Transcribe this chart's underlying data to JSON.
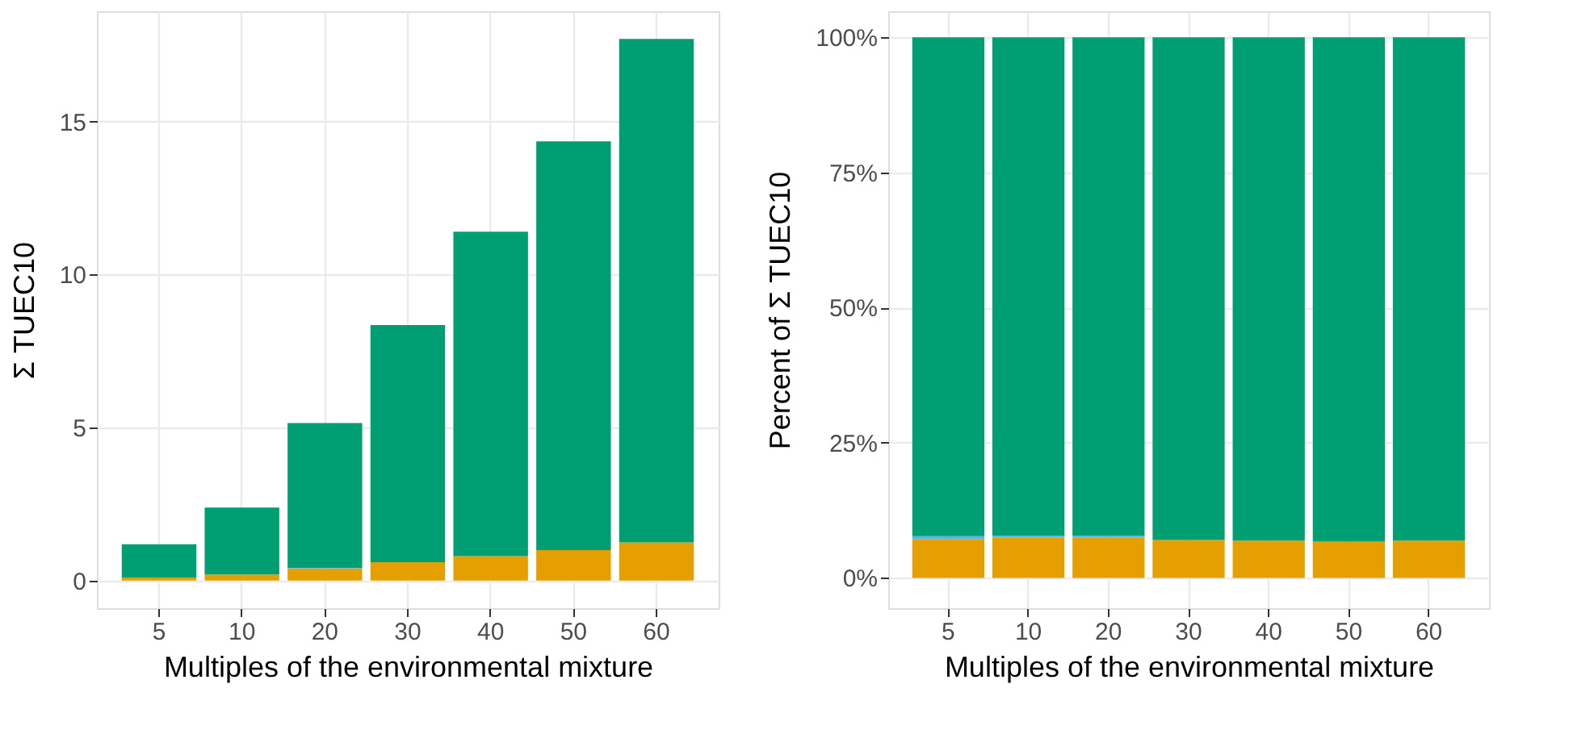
{
  "chart_data": [
    {
      "type": "bar",
      "stacked": true,
      "xlabel": "Multiples of the environmental mixture",
      "ylabel": "Σ TUEC10",
      "categories": [
        "5",
        "10",
        "20",
        "30",
        "40",
        "50",
        "60"
      ],
      "series": [
        {
          "color": "#e69f00",
          "values": [
            0.1,
            0.2,
            0.4,
            0.6,
            0.8,
            1.0,
            1.25
          ]
        },
        {
          "color": "#56b4e9",
          "values": [
            null,
            null,
            0.02,
            0.0,
            0.0,
            0.0,
            0.0
          ]
        },
        {
          "color": "#009e73",
          "values": [
            1.09,
            2.19,
            4.73,
            7.75,
            10.6,
            13.35,
            16.45
          ]
        }
      ],
      "ylim": [
        -0.9,
        18.6
      ],
      "yticks": [
        0,
        5,
        10,
        15
      ],
      "grid": true,
      "legend": false
    },
    {
      "type": "bar",
      "stacked": true,
      "xlabel": "Multiples of the environmental mixture",
      "ylabel": "Percent of Σ TUEC10",
      "categories": [
        "5",
        "10",
        "20",
        "30",
        "40",
        "50",
        "60"
      ],
      "series": [
        {
          "color": "#e69f00",
          "values": [
            7.2,
            7.5,
            7.4,
            7.0,
            6.9,
            6.7,
            6.9
          ]
        },
        {
          "color": "#56b4e9",
          "values": [
            0.5,
            0.3,
            0.4,
            0.0,
            0.0,
            0.0,
            0.0
          ]
        },
        {
          "color": "#009e73",
          "values": [
            92.3,
            92.2,
            92.2,
            93.0,
            93.1,
            93.3,
            93.1
          ]
        }
      ],
      "ylim": [
        -5.6,
        104.8
      ],
      "yticks": [
        {
          "value": 0,
          "label": "0%"
        },
        {
          "value": 25,
          "label": "25%"
        },
        {
          "value": 50,
          "label": "50%"
        },
        {
          "value": 75,
          "label": "75%"
        },
        {
          "value": 100,
          "label": "100%"
        }
      ],
      "grid": true,
      "legend": false
    }
  ]
}
